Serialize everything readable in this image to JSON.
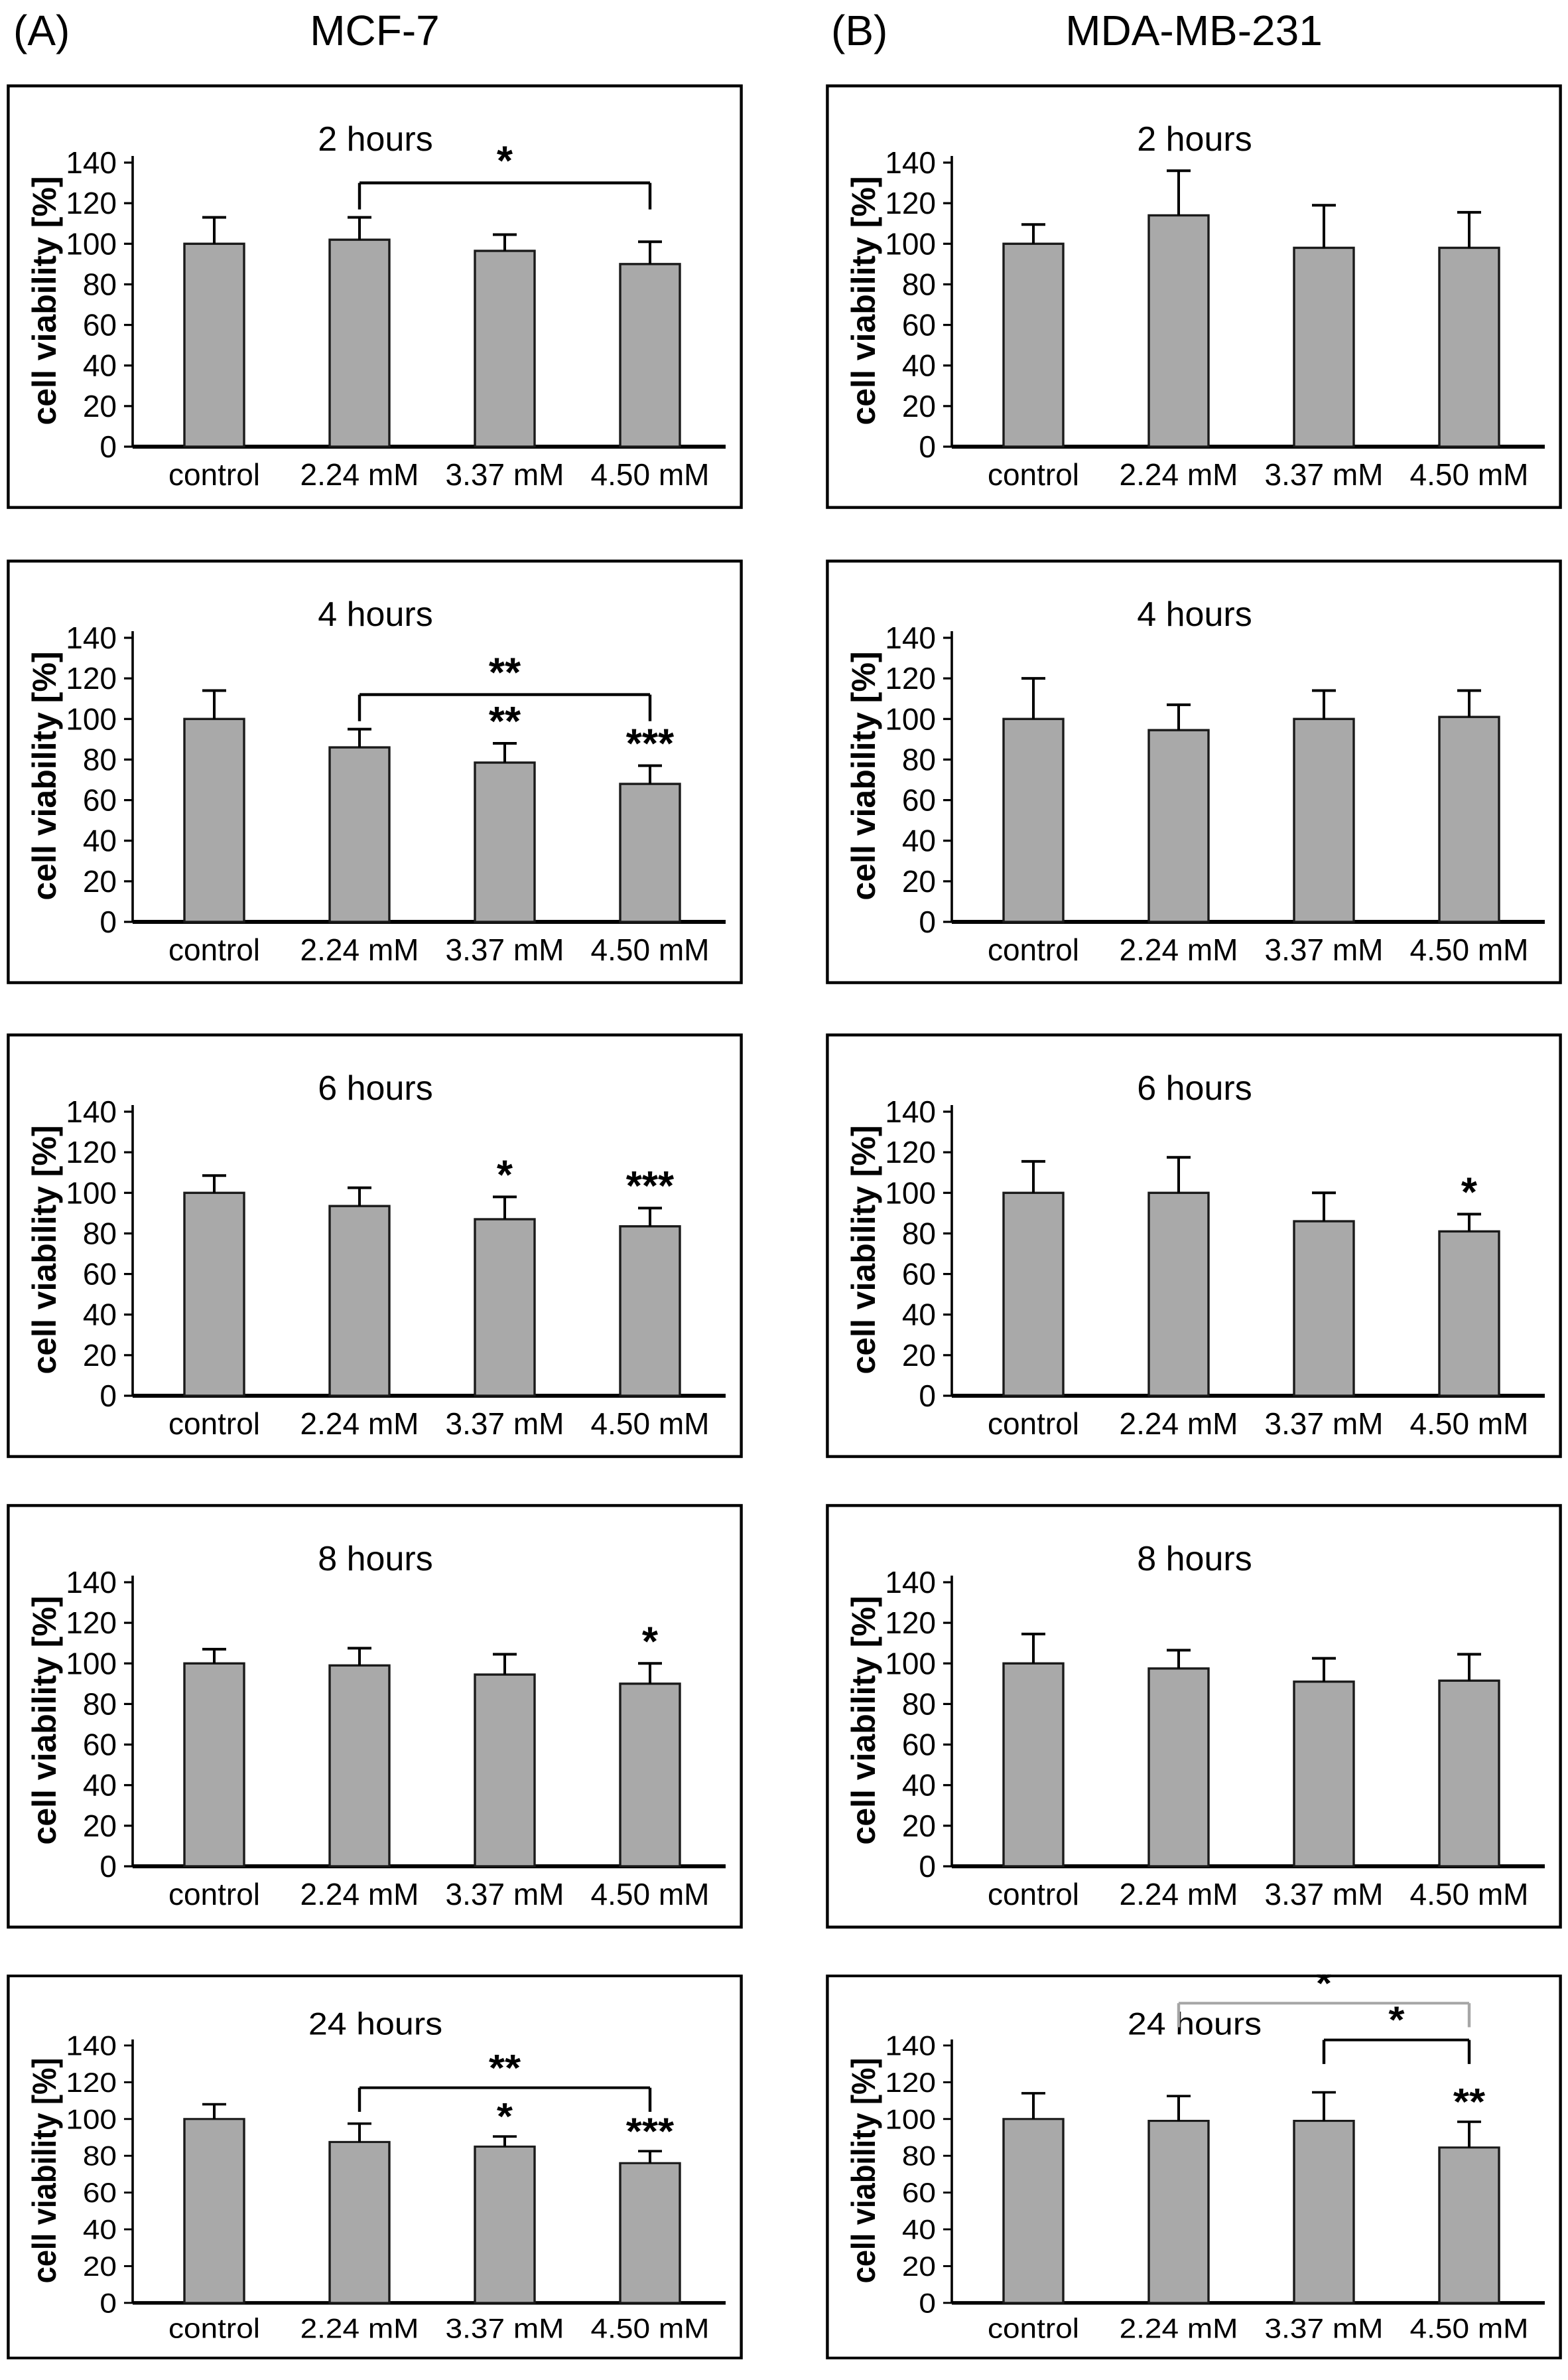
{
  "page": {
    "background": "#ffffff"
  },
  "header": {
    "panel_a_label": "(A)",
    "panel_a_title": "MCF-7",
    "panel_b_label": "(B)",
    "panel_b_title": "MDA-MB-231"
  },
  "colors": {
    "bar_fill": "#a9a9a9",
    "bar_stroke": "#1a1a1a",
    "axis": "#000000",
    "panel_border": "#000000",
    "bracket_black": "#000000",
    "bracket_gray": "#a6a6a6",
    "text": "#000000"
  },
  "chart_data": [
    {
      "type": "bar",
      "panel": "A",
      "cell_line": "MCF-7",
      "title": "2 hours",
      "ylabel": "cell viability [%]",
      "ylim": [
        0,
        140
      ],
      "yticks": [
        0,
        20,
        40,
        60,
        80,
        100,
        120,
        140
      ],
      "categories": [
        "control",
        "2.24 mM",
        "3.37 mM",
        "4.50 mM"
      ],
      "values": [
        100,
        102,
        96.5,
        90
      ],
      "errors": [
        13,
        11,
        8,
        11
      ],
      "sig": [
        "",
        "",
        "",
        ""
      ],
      "brackets": [
        {
          "from": 1,
          "to": 3,
          "label": "*",
          "y_pct": 130,
          "color": "black"
        }
      ],
      "legend": null,
      "grid": false
    },
    {
      "type": "bar",
      "panel": "B",
      "cell_line": "MDA-MB-231",
      "title": "2 hours",
      "ylabel": "cell viability [%]",
      "ylim": [
        0,
        140
      ],
      "yticks": [
        0,
        20,
        40,
        60,
        80,
        100,
        120,
        140
      ],
      "categories": [
        "control",
        "2.24 mM",
        "3.37 mM",
        "4.50 mM"
      ],
      "values": [
        100,
        114,
        98,
        98
      ],
      "errors": [
        9.5,
        22,
        21,
        17.5
      ],
      "sig": [
        "",
        "",
        "",
        ""
      ],
      "brackets": [],
      "legend": null,
      "grid": false
    },
    {
      "type": "bar",
      "panel": "A",
      "cell_line": "MCF-7",
      "title": "4 hours",
      "ylabel": "cell viability [%]",
      "ylim": [
        0,
        140
      ],
      "yticks": [
        0,
        20,
        40,
        60,
        80,
        100,
        120,
        140
      ],
      "categories": [
        "control",
        "2.24 mM",
        "3.37 mM",
        "4.50 mM"
      ],
      "values": [
        100,
        86,
        78.5,
        68
      ],
      "errors": [
        14,
        9,
        9.5,
        9
      ],
      "sig": [
        "",
        "",
        "**",
        "***"
      ],
      "brackets": [
        {
          "from": 1,
          "to": 3,
          "label": "**",
          "y_pct": 112,
          "color": "black"
        }
      ],
      "legend": null,
      "grid": false
    },
    {
      "type": "bar",
      "panel": "B",
      "cell_line": "MDA-MB-231",
      "title": "4 hours",
      "ylabel": "cell viability [%]",
      "ylim": [
        0,
        140
      ],
      "yticks": [
        0,
        20,
        40,
        60,
        80,
        100,
        120,
        140
      ],
      "categories": [
        "control",
        "2.24 mM",
        "3.37 mM",
        "4.50 mM"
      ],
      "values": [
        100,
        94.5,
        100,
        101
      ],
      "errors": [
        20,
        12.5,
        14,
        13
      ],
      "sig": [
        "",
        "",
        "",
        ""
      ],
      "brackets": [],
      "legend": null,
      "grid": false
    },
    {
      "type": "bar",
      "panel": "A",
      "cell_line": "MCF-7",
      "title": "6 hours",
      "ylabel": "cell viability [%]",
      "ylim": [
        0,
        140
      ],
      "yticks": [
        0,
        20,
        40,
        60,
        80,
        100,
        120,
        140
      ],
      "categories": [
        "control",
        "2.24 mM",
        "3.37 mM",
        "4.50 mM"
      ],
      "values": [
        100,
        93.5,
        87,
        83.5
      ],
      "errors": [
        8.5,
        9,
        11,
        9
      ],
      "sig": [
        "",
        "",
        "*",
        "***"
      ],
      "brackets": [],
      "legend": null,
      "grid": false
    },
    {
      "type": "bar",
      "panel": "B",
      "cell_line": "MDA-MB-231",
      "title": "6 hours",
      "ylabel": "cell viability [%]",
      "ylim": [
        0,
        140
      ],
      "yticks": [
        0,
        20,
        40,
        60,
        80,
        100,
        120,
        140
      ],
      "categories": [
        "control",
        "2.24 mM",
        "3.37 mM",
        "4.50 mM"
      ],
      "values": [
        100,
        100,
        86,
        81
      ],
      "errors": [
        15.5,
        17.5,
        14,
        8.5
      ],
      "sig": [
        "",
        "",
        "",
        "*"
      ],
      "brackets": [],
      "legend": null,
      "grid": false
    },
    {
      "type": "bar",
      "panel": "A",
      "cell_line": "MCF-7",
      "title": "8 hours",
      "ylabel": "cell viability [%]",
      "ylim": [
        0,
        140
      ],
      "yticks": [
        0,
        20,
        40,
        60,
        80,
        100,
        120,
        140
      ],
      "categories": [
        "control",
        "2.24 mM",
        "3.37 mM",
        "4.50 mM"
      ],
      "values": [
        100,
        99,
        94.5,
        90
      ],
      "errors": [
        7,
        8.5,
        10,
        10
      ],
      "sig": [
        "",
        "",
        "",
        "*"
      ],
      "brackets": [],
      "legend": null,
      "grid": false
    },
    {
      "type": "bar",
      "panel": "B",
      "cell_line": "MDA-MB-231",
      "title": "8 hours",
      "ylabel": "cell viability [%]",
      "ylim": [
        0,
        140
      ],
      "yticks": [
        0,
        20,
        40,
        60,
        80,
        100,
        120,
        140
      ],
      "categories": [
        "control",
        "2.24 mM",
        "3.37 mM",
        "4.50 mM"
      ],
      "values": [
        100,
        97.5,
        91,
        91.5
      ],
      "errors": [
        14.5,
        9,
        11.5,
        13
      ],
      "sig": [
        "",
        "",
        "",
        ""
      ],
      "brackets": [],
      "legend": null,
      "grid": false
    },
    {
      "type": "bar",
      "panel": "A",
      "cell_line": "MCF-7",
      "title": "24 hours",
      "ylabel": "cell viability [%]",
      "ylim": [
        0,
        140
      ],
      "yticks": [
        0,
        20,
        40,
        60,
        80,
        100,
        120,
        140
      ],
      "categories": [
        "control",
        "2.24 mM",
        "3.37 mM",
        "4.50 mM"
      ],
      "values": [
        100,
        87.5,
        85,
        76
      ],
      "errors": [
        8,
        10,
        5.5,
        6.5
      ],
      "sig": [
        "",
        "",
        "*",
        "***"
      ],
      "brackets": [
        {
          "from": 1,
          "to": 3,
          "label": "**",
          "y_pct": 117,
          "color": "black"
        }
      ],
      "legend": null,
      "grid": false
    },
    {
      "type": "bar",
      "panel": "B",
      "cell_line": "MDA-MB-231",
      "title": "24 hours",
      "ylabel": "cell viability [%]",
      "ylim": [
        0,
        140
      ],
      "yticks": [
        0,
        20,
        40,
        60,
        80,
        100,
        120,
        140
      ],
      "categories": [
        "control",
        "2.24 mM",
        "3.37 mM",
        "4.50 mM"
      ],
      "values": [
        100,
        99,
        99,
        84.5
      ],
      "errors": [
        14,
        13.5,
        15.5,
        14
      ],
      "sig": [
        "",
        "",
        "",
        "**"
      ],
      "brackets": [
        {
          "from": 1,
          "to": 3,
          "label": "*",
          "y_pct": 163,
          "color": "gray"
        },
        {
          "from": 2,
          "to": 3,
          "label": "*",
          "y_pct": 143,
          "color": "black"
        }
      ],
      "legend": null,
      "grid": false
    }
  ]
}
